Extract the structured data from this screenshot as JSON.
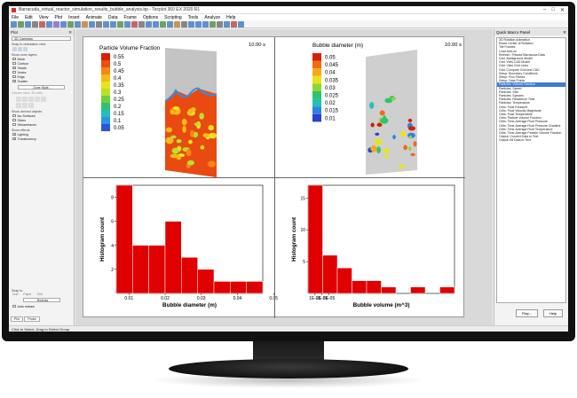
{
  "window": {
    "title": "Barracuda_virtual_reactor_simulation_results_bubble_analysis.bp - Tecplot 360 EX 2020 R1"
  },
  "menu": [
    "File",
    "Edit",
    "View",
    "Plot",
    "Insert",
    "Animate",
    "Data",
    "Frame",
    "Options",
    "Scripting",
    "Tools",
    "Analyze",
    "Help"
  ],
  "left_panel": {
    "title": "Plot",
    "plot_type": "3D Cartesian",
    "snap_label": "Snap to orientation view",
    "show_zone_layers": "Show zone layers",
    "layers": [
      {
        "label": "Mesh",
        "checked": false
      },
      {
        "label": "Contour",
        "checked": false
      },
      {
        "label": "Shade",
        "checked": true
      },
      {
        "label": "Vector",
        "checked": false
      },
      {
        "label": "Edge",
        "checked": false
      },
      {
        "label": "Scatter",
        "checked": true
      }
    ],
    "zone_style_button": "Zone Style...",
    "volume_label": "Volume view: 3D cells",
    "show_derived": "Show derived objects",
    "derived": [
      {
        "label": "Iso-Surfaces",
        "checked": false
      },
      {
        "label": "Slices",
        "checked": false
      },
      {
        "label": "Streamtraces",
        "checked": false
      }
    ],
    "show_effects": "Show effects",
    "effects": [
      {
        "label": "Lighting",
        "checked": true
      },
      {
        "label": "Translucency",
        "checked": true
      }
    ],
    "snap_to": "Snap to",
    "snap_options": [
      "Grid",
      "Paper",
      "Grid"
    ],
    "redraw_button": "Redraw",
    "auto_redraw": "Auto redraw",
    "tabs": [
      "Plot",
      "Probe"
    ]
  },
  "frames": {
    "pvf": {
      "title": "Particle Volume Fraction",
      "time": "10.00 s",
      "levels": [
        "0.55",
        "0.5",
        "0.45",
        "0.4",
        "0.35",
        "0.3",
        "0.25",
        "0.2",
        "0.15",
        "0.1",
        "0.05"
      ],
      "colors": [
        "#d81e05",
        "#ef4d0e",
        "#f7870f",
        "#f6ba16",
        "#e9e31e",
        "#b5e12c",
        "#6dd13c",
        "#2fc36c",
        "#24c0b8",
        "#2c92e6",
        "#2955d8"
      ]
    },
    "bd": {
      "title": "Bubble diameter (m)",
      "time": "10.00 s",
      "levels": [
        "0.05",
        "0.045",
        "0.04",
        "0.035",
        "0.03",
        "0.025",
        "0.02",
        "0.015",
        "0.01"
      ],
      "colors": [
        "#d81e05",
        "#f26a0e",
        "#f7a915",
        "#e9e31e",
        "#8ed634",
        "#2fc36c",
        "#24c0b8",
        "#2c83e6",
        "#2a3fd0"
      ]
    }
  },
  "chart_data": [
    {
      "type": "bar",
      "xlabel": "Bubble diameter (m)",
      "ylabel": "Histogram count",
      "bin_start": 0.0065,
      "bin_width": 0.0045,
      "values": [
        9,
        4,
        4,
        6,
        3,
        2,
        1,
        1,
        1
      ],
      "xticks": [
        "0.01",
        "0.02",
        "0.03",
        "0.04",
        "0.05"
      ],
      "xtick_values": [
        0.01,
        0.02,
        0.03,
        0.04,
        0.05
      ],
      "xlim": [
        0.0065,
        0.047
      ],
      "ylim": [
        0,
        9
      ],
      "yticks": [
        "2",
        "4",
        "6",
        "8"
      ],
      "bar_color": "#e00000"
    },
    {
      "type": "bar",
      "xlabel": "Bubble volume (m^3)",
      "ylabel": "Histogram count",
      "bin_start": 0,
      "bin_width": 2.1e-05,
      "values": [
        17,
        6,
        4,
        2,
        2,
        1,
        0,
        1,
        0,
        1
      ],
      "xticks": [
        "1E-05",
        "2E-05",
        "3E-05"
      ],
      "xtick_values": [
        1e-05,
        2e-05,
        3e-05
      ],
      "xlim": [
        0,
        0.00021
      ],
      "ylim": [
        0,
        17
      ],
      "yticks": [
        "5",
        "10",
        "15"
      ],
      "bar_color": "#e00000"
    }
  ],
  "right_panel": {
    "title": "Quick Macro Panel",
    "items": [
      "3D Rotation Animation",
      "Reset Center of Rotation",
      "Tile Frames",
      "Load Add-on",
      "Refresh / Reload Barracuda Data",
      "Grid: Background Model",
      "Grid: View CAD Model",
      "Grid: View Grid Lines",
      "Grid: Compare Grid and CAD",
      "Setup: Boundary Conditions",
      "Setup: Flux Planes",
      "Setup: Data Points",
      "Particles: Volume Fraction",
      "Particles: Speed",
      "Particles: Size",
      "Particles: Species",
      "Particles: Residence Time",
      "Particles: Temperature",
      "Cells: Fluid Pressure",
      "Cells: Fluid Velocity Magnitude",
      "Cells: Fluid Temperature",
      "Cells: Particle Volume Fraction",
      "Cells: Time-Average Fluid Pressure",
      "Cells: Time-Average Fluid Pressure Gradient",
      "Cells: Time-Average Fluid Temperature",
      "Cells: Time-Average Particle Volume Fraction",
      "Output: Convert Data to Text",
      "Output: All Data to Text"
    ],
    "selected_index": 12,
    "buttons": [
      "Play...",
      "Help"
    ]
  },
  "status": "Click to Select, Drag to Select Group"
}
